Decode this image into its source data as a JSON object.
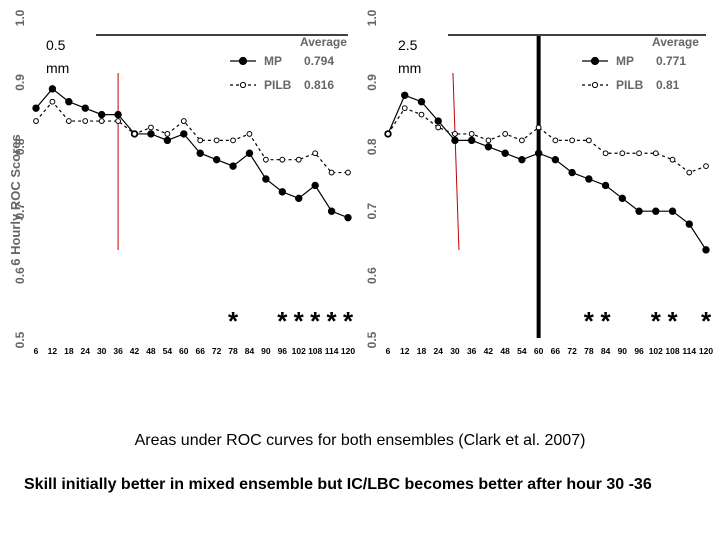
{
  "chart_data": [
    {
      "type": "line",
      "panel_label": "0.5 mm",
      "ylabel": "6 Hourly ROC Scores",
      "ylim": [
        0.5,
        1.0
      ],
      "yticks": [
        "0.5",
        "0.6",
        "0.7",
        "0.8",
        "0.9",
        "1.0"
      ],
      "x": [
        6,
        12,
        18,
        24,
        30,
        36,
        42,
        48,
        54,
        60,
        66,
        72,
        78,
        84,
        90,
        96,
        102,
        108,
        114,
        120
      ],
      "xticks": [
        "6",
        "12",
        "18",
        "24",
        "30",
        "36",
        "42",
        "48",
        "54",
        "60",
        "66",
        "72",
        "78",
        "84",
        "90",
        "96",
        "102",
        "108",
        "114",
        "120"
      ],
      "legend_title": "Average",
      "series": [
        {
          "name": "MP",
          "avg": "0.794",
          "style": "solid",
          "marker": "filled",
          "values": [
            0.86,
            0.89,
            0.87,
            0.86,
            0.85,
            0.85,
            0.82,
            0.82,
            0.81,
            0.82,
            0.79,
            0.78,
            0.77,
            0.79,
            0.75,
            0.73,
            0.72,
            0.74,
            0.7,
            0.69
          ]
        },
        {
          "name": "PILB",
          "avg": "0.816",
          "style": "dashed",
          "marker": "open",
          "values": [
            0.84,
            0.87,
            0.84,
            0.84,
            0.84,
            0.84,
            0.82,
            0.83,
            0.82,
            0.84,
            0.81,
            0.81,
            0.81,
            0.82,
            0.78,
            0.78,
            0.78,
            0.79,
            0.76,
            0.76
          ]
        }
      ],
      "red_marker_x": 36,
      "black_marker_x": null,
      "significance_stars_x": [
        78,
        96,
        102,
        108,
        114,
        120
      ],
      "star_symbol": "*"
    },
    {
      "type": "line",
      "panel_label": "2.5 mm",
      "ylabel": "",
      "ylim": [
        0.5,
        1.0
      ],
      "yticks": [
        "0.5",
        "0.6",
        "0.7",
        "0.8",
        "0.9",
        "1.0"
      ],
      "x": [
        6,
        12,
        18,
        24,
        30,
        36,
        42,
        48,
        54,
        60,
        66,
        72,
        78,
        84,
        90,
        96,
        102,
        108,
        114,
        120
      ],
      "xticks": [
        "6",
        "12",
        "18",
        "24",
        "30",
        "36",
        "42",
        "48",
        "54",
        "60",
        "66",
        "72",
        "78",
        "84",
        "90",
        "96",
        "102",
        "108",
        "114",
        "120"
      ],
      "legend_title": "Average",
      "series": [
        {
          "name": "MP",
          "avg": "0.771",
          "style": "solid",
          "marker": "filled",
          "values": [
            0.82,
            0.88,
            0.87,
            0.84,
            0.81,
            0.81,
            0.8,
            0.79,
            0.78,
            0.79,
            0.78,
            0.76,
            0.75,
            0.74,
            0.72,
            0.7,
            0.7,
            0.7,
            0.68,
            0.64
          ]
        },
        {
          "name": "PILB",
          "avg": "0.81",
          "style": "dashed",
          "marker": "open",
          "values": [
            0.82,
            0.86,
            0.85,
            0.83,
            0.82,
            0.82,
            0.81,
            0.82,
            0.81,
            0.83,
            0.81,
            0.81,
            0.81,
            0.79,
            0.79,
            0.79,
            0.79,
            0.78,
            0.76,
            0.77
          ]
        }
      ],
      "red_marker_x": 30,
      "black_marker_x": 60,
      "significance_stars_x": [
        78,
        84,
        102,
        108,
        120
      ],
      "star_symbol": "*"
    }
  ],
  "caption": "Areas under ROC curves for both ensembles (Clark et al. 2007)",
  "note": "Skill initially better in mixed ensemble but IC/LBC becomes better after hour 30 -36",
  "colors": {
    "mp_line": "#000000",
    "pilb_line": "#000000",
    "red_marker": "#c00000",
    "black_marker": "#000000"
  }
}
